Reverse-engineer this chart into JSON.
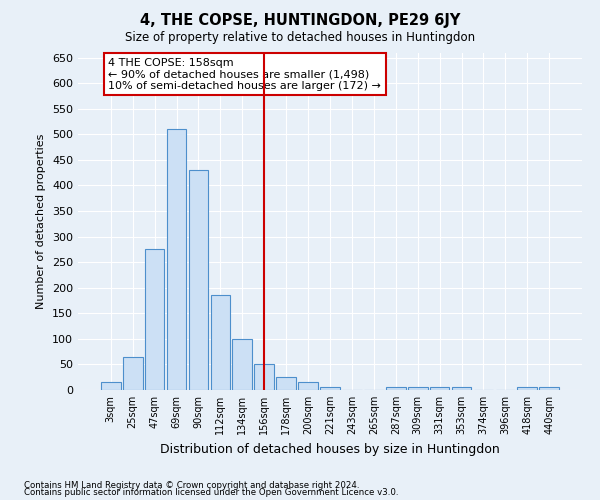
{
  "title": "4, THE COPSE, HUNTINGDON, PE29 6JY",
  "subtitle": "Size of property relative to detached houses in Huntingdon",
  "xlabel": "Distribution of detached houses by size in Huntingdon",
  "ylabel": "Number of detached properties",
  "categories": [
    "3sqm",
    "25sqm",
    "47sqm",
    "69sqm",
    "90sqm",
    "112sqm",
    "134sqm",
    "156sqm",
    "178sqm",
    "200sqm",
    "221sqm",
    "243sqm",
    "265sqm",
    "287sqm",
    "309sqm",
    "331sqm",
    "353sqm",
    "374sqm",
    "396sqm",
    "418sqm",
    "440sqm"
  ],
  "bar_heights": [
    15,
    65,
    275,
    510,
    430,
    185,
    100,
    50,
    25,
    15,
    5,
    0,
    0,
    5,
    5,
    5,
    5,
    0,
    0,
    5,
    5
  ],
  "bar_color": "#cce0f5",
  "bar_edge_color": "#4d8fcc",
  "vline_color": "#cc0000",
  "annotation_text": "4 THE COPSE: 158sqm\n← 90% of detached houses are smaller (1,498)\n10% of semi-detached houses are larger (172) →",
  "annotation_box_color": "#ffffff",
  "annotation_box_edge": "#cc0000",
  "ylim": [
    0,
    660
  ],
  "yticks": [
    0,
    50,
    100,
    150,
    200,
    250,
    300,
    350,
    400,
    450,
    500,
    550,
    600,
    650
  ],
  "footnote1": "Contains HM Land Registry data © Crown copyright and database right 2024.",
  "footnote2": "Contains public sector information licensed under the Open Government Licence v3.0.",
  "bg_color": "#e8f0f8",
  "plot_bg_color": "#e8f0f8",
  "grid_color": "#ffffff",
  "vline_x_index": 7
}
